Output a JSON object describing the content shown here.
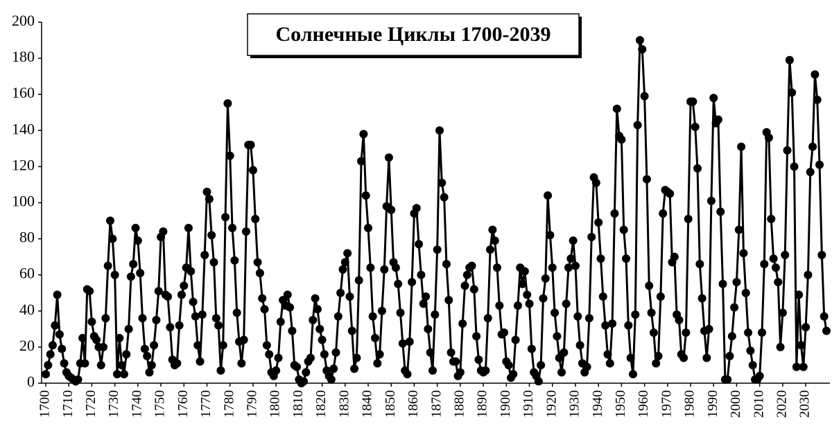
{
  "chart_data": {
    "type": "line",
    "title": "Солнечные Циклы 1700-2039",
    "color": "#000000",
    "grid": false,
    "xlim": [
      1700,
      2039
    ],
    "ylim": [
      0,
      200
    ],
    "yticks": [
      0,
      20,
      40,
      60,
      80,
      100,
      120,
      140,
      160,
      180,
      200
    ],
    "xticks": [
      1700,
      1710,
      1720,
      1730,
      1740,
      1750,
      1760,
      1770,
      1780,
      1790,
      1800,
      1810,
      1820,
      1830,
      1840,
      1850,
      1860,
      1870,
      1880,
      1890,
      1900,
      1910,
      1920,
      1930,
      1940,
      1950,
      1960,
      1970,
      1980,
      1990,
      2000,
      2010,
      2020,
      2030
    ],
    "x": [
      1700,
      1701,
      1702,
      1703,
      1704,
      1705,
      1706,
      1707,
      1708,
      1709,
      1710,
      1711,
      1712,
      1713,
      1714,
      1715,
      1716,
      1717,
      1718,
      1719,
      1720,
      1721,
      1722,
      1723,
      1724,
      1725,
      1726,
      1727,
      1728,
      1729,
      1730,
      1731,
      1732,
      1733,
      1734,
      1735,
      1736,
      1737,
      1738,
      1739,
      1740,
      1741,
      1742,
      1743,
      1744,
      1745,
      1746,
      1747,
      1748,
      1749,
      1750,
      1751,
      1752,
      1753,
      1754,
      1755,
      1756,
      1757,
      1758,
      1759,
      1760,
      1761,
      1762,
      1763,
      1764,
      1765,
      1766,
      1767,
      1768,
      1769,
      1770,
      1771,
      1772,
      1773,
      1774,
      1775,
      1776,
      1777,
      1778,
      1779,
      1780,
      1781,
      1782,
      1783,
      1784,
      1785,
      1786,
      1787,
      1788,
      1789,
      1790,
      1791,
      1792,
      1793,
      1794,
      1795,
      1796,
      1797,
      1798,
      1799,
      1800,
      1801,
      1802,
      1803,
      1804,
      1805,
      1806,
      1807,
      1808,
      1809,
      1810,
      1811,
      1812,
      1813,
      1814,
      1815,
      1816,
      1817,
      1818,
      1819,
      1820,
      1821,
      1822,
      1823,
      1824,
      1825,
      1826,
      1827,
      1828,
      1829,
      1830,
      1831,
      1832,
      1833,
      1834,
      1835,
      1836,
      1837,
      1838,
      1839,
      1840,
      1841,
      1842,
      1843,
      1844,
      1845,
      1846,
      1847,
      1848,
      1849,
      1850,
      1851,
      1852,
      1853,
      1854,
      1855,
      1856,
      1857,
      1858,
      1859,
      1860,
      1861,
      1862,
      1863,
      1864,
      1865,
      1866,
      1867,
      1868,
      1869,
      1870,
      1871,
      1872,
      1873,
      1874,
      1875,
      1876,
      1877,
      1878,
      1879,
      1880,
      1881,
      1882,
      1883,
      1884,
      1885,
      1886,
      1887,
      1888,
      1889,
      1890,
      1891,
      1892,
      1893,
      1894,
      1895,
      1896,
      1897,
      1898,
      1899,
      1900,
      1901,
      1902,
      1903,
      1904,
      1905,
      1906,
      1907,
      1908,
      1909,
      1910,
      1911,
      1912,
      1913,
      1914,
      1915,
      1916,
      1917,
      1918,
      1919,
      1920,
      1921,
      1922,
      1923,
      1924,
      1925,
      1926,
      1927,
      1928,
      1929,
      1930,
      1931,
      1932,
      1933,
      1934,
      1935,
      1936,
      1937,
      1938,
      1939,
      1940,
      1941,
      1942,
      1943,
      1944,
      1945,
      1946,
      1947,
      1948,
      1949,
      1950,
      1951,
      1952,
      1953,
      1954,
      1955,
      1956,
      1957,
      1958,
      1959,
      1960,
      1961,
      1962,
      1963,
      1964,
      1965,
      1966,
      1967,
      1968,
      1969,
      1970,
      1971,
      1972,
      1973,
      1974,
      1975,
      1976,
      1977,
      1978,
      1979,
      1980,
      1981,
      1982,
      1983,
      1984,
      1985,
      1986,
      1987,
      1988,
      1989,
      1990,
      1991,
      1992,
      1993,
      1994,
      1995,
      1996,
      1997,
      1998,
      1999,
      2000,
      2001,
      2002,
      2003,
      2004,
      2005,
      2006,
      2007,
      2008,
      2009,
      2010,
      2011,
      2012,
      2013,
      2014,
      2015,
      2016,
      2017,
      2018,
      2019,
      2020,
      2021,
      2022,
      2023,
      2024,
      2025,
      2026,
      2027,
      2028,
      2029,
      2030,
      2031,
      2032,
      2033,
      2034,
      2035,
      2036,
      2037,
      2038,
      2039
    ],
    "values": [
      5,
      10,
      16,
      21,
      32,
      49,
      27,
      19,
      11,
      6,
      4,
      3,
      2,
      1,
      2,
      11,
      25,
      11,
      52,
      51,
      34,
      26,
      24,
      20,
      10,
      20,
      36,
      65,
      90,
      80,
      60,
      5,
      25,
      10,
      5,
      16,
      30,
      59,
      66,
      86,
      79,
      61,
      36,
      19,
      15,
      6,
      10,
      21,
      35,
      51,
      81,
      84,
      49,
      48,
      31,
      13,
      10,
      11,
      32,
      49,
      54,
      64,
      86,
      62,
      45,
      37,
      21,
      12,
      38,
      71,
      106,
      102,
      82,
      67,
      36,
      32,
      7,
      21,
      92,
      155,
      126,
      86,
      68,
      39,
      23,
      11,
      24,
      84,
      132,
      132,
      118,
      91,
      67,
      61,
      47,
      41,
      21,
      16,
      6,
      4,
      7,
      14,
      34,
      46,
      43,
      49,
      42,
      29,
      10,
      9,
      2,
      0,
      1,
      6,
      12,
      14,
      35,
      47,
      41,
      30,
      24,
      16,
      7,
      4,
      2,
      8,
      17,
      37,
      50,
      63,
      67,
      72,
      48,
      29,
      8,
      14,
      57,
      123,
      138,
      104,
      86,
      64,
      37,
      25,
      11,
      16,
      40,
      63,
      98,
      125,
      96,
      67,
      64,
      55,
      39,
      22,
      7,
      5,
      23,
      56,
      94,
      97,
      77,
      60,
      44,
      48,
      30,
      17,
      7,
      38,
      74,
      140,
      111,
      103,
      66,
      46,
      17,
      12,
      12,
      4,
      6,
      33,
      54,
      60,
      64,
      65,
      52,
      26,
      13,
      7,
      6,
      7,
      36,
      74,
      85,
      79,
      64,
      43,
      27,
      28,
      12,
      10,
      3,
      5,
      24,
      43,
      64,
      55,
      62,
      49,
      44,
      19,
      6,
      4,
      1,
      10,
      47,
      58,
      104,
      82,
      64,
      39,
      26,
      14,
      6,
      17,
      44,
      64,
      69,
      79,
      65,
      37,
      21,
      11,
      6,
      9,
      36,
      81,
      114,
      111,
      89,
      69,
      48,
      32,
      16,
      11,
      33,
      94,
      152,
      137,
      135,
      85,
      69,
      32,
      14,
      5,
      38,
      143,
      190,
      185,
      159,
      113,
      54,
      39,
      28,
      11,
      15,
      48,
      94,
      107,
      106,
      105,
      67,
      70,
      38,
      35,
      16,
      14,
      28,
      91,
      156,
      156,
      142,
      119,
      66,
      47,
      29,
      14,
      30,
      101,
      158,
      144,
      146,
      95,
      55,
      2,
      2,
      15,
      26,
      42,
      56,
      85,
      131,
      72,
      50,
      28,
      18,
      10,
      2,
      2,
      4,
      28,
      66,
      139,
      136,
      91,
      69,
      64,
      56,
      20,
      39,
      71,
      129,
      179,
      161,
      120,
      9,
      49,
      21,
      9,
      31,
      60,
      117,
      131,
      171,
      157,
      121,
      71,
      37,
      29
    ]
  }
}
